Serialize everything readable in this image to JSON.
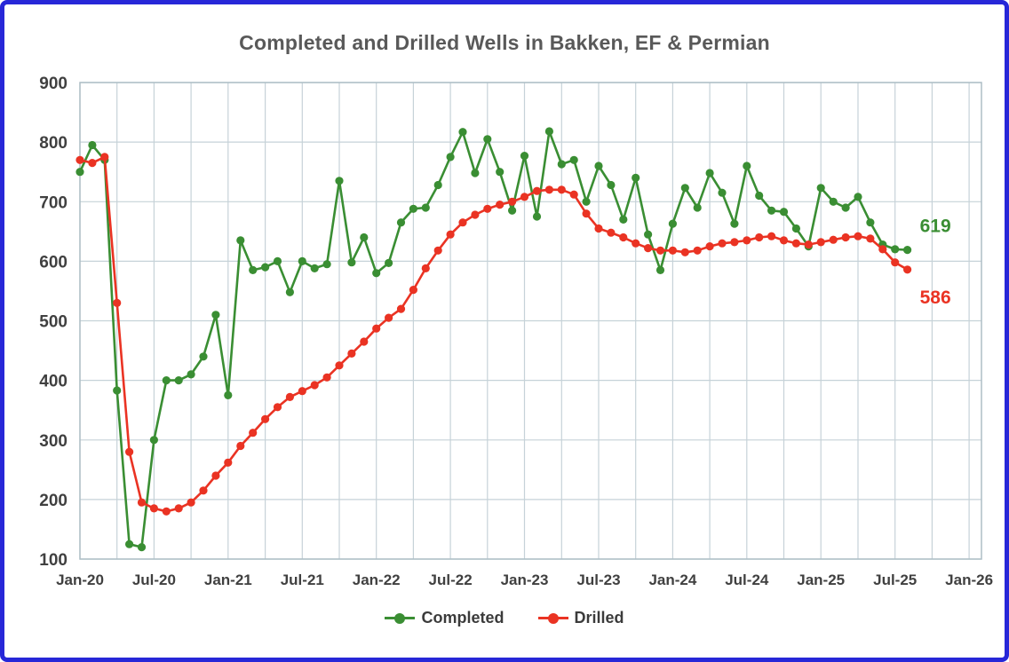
{
  "title": "Completed and Drilled Wells in Bakken, EF & Permian",
  "legend": {
    "completed": "Completed",
    "drilled": "Drilled"
  },
  "colors": {
    "frame_border": "#2727d8",
    "grid": "#c6d2d8",
    "plot_border": "#aebec6",
    "axis_text": "#404040",
    "title_text": "#595959",
    "completed": "#3a8e33",
    "drilled": "#ea3323"
  },
  "chart_data": {
    "type": "line",
    "title": "Completed and Drilled Wells in Bakken, EF & Permian",
    "x_unit": "month",
    "x_months_start": "Jan-20",
    "x_months_end": "Aug-25",
    "points_per_series": 68,
    "x_tick_labels": [
      "Jan-20",
      "Jul-20",
      "Jan-21",
      "Jul-21",
      "Jan-22",
      "Jul-22",
      "Jan-23",
      "Jul-23",
      "Jan-24",
      "Jul-24",
      "Jan-25",
      "Jul-25",
      "Jan-26"
    ],
    "x_gridline_interval_months": 3,
    "ylim": [
      100,
      900
    ],
    "y_tick_interval": 100,
    "grid": true,
    "legend_position": "bottom",
    "series": [
      {
        "name": "Completed",
        "color": "#3a8e33",
        "end_label": "619",
        "end_label_position": "above",
        "values": [
          750,
          795,
          770,
          383,
          125,
          120,
          300,
          400,
          400,
          410,
          440,
          510,
          375,
          635,
          585,
          590,
          600,
          548,
          600,
          588,
          595,
          735,
          598,
          640,
          580,
          597,
          665,
          688,
          690,
          728,
          775,
          817,
          748,
          805,
          750,
          685,
          777,
          675,
          818,
          763,
          770,
          700,
          760,
          728,
          670,
          740,
          645,
          585,
          663,
          723,
          690,
          748,
          715,
          663,
          760,
          710,
          685,
          683,
          655,
          625,
          723,
          700,
          690,
          708,
          665,
          628,
          620,
          619
        ]
      },
      {
        "name": "Drilled",
        "color": "#ea3323",
        "end_label": "586",
        "end_label_position": "below",
        "values": [
          770,
          765,
          775,
          530,
          280,
          195,
          185,
          180,
          185,
          195,
          215,
          240,
          262,
          290,
          312,
          335,
          355,
          372,
          382,
          392,
          405,
          425,
          445,
          465,
          487,
          505,
          520,
          552,
          588,
          618,
          645,
          665,
          678,
          688,
          695,
          700,
          708,
          718,
          720,
          720,
          712,
          680,
          655,
          648,
          640,
          630,
          622,
          618,
          618,
          615,
          618,
          625,
          630,
          632,
          635,
          640,
          642,
          635,
          630,
          628,
          632,
          636,
          640,
          642,
          638,
          620,
          598,
          586
        ]
      }
    ]
  }
}
